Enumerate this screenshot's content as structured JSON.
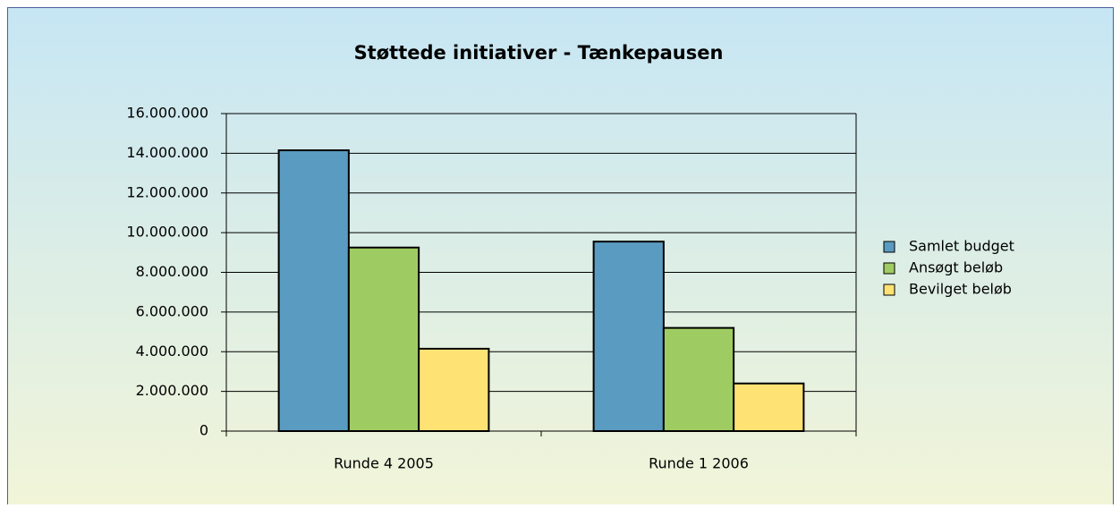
{
  "chart_data": {
    "type": "bar",
    "title": "Støttede initiativer - Tænkepausen",
    "categories": [
      "Runde 4 2005",
      "Runde 1 2006"
    ],
    "series": [
      {
        "name": "Samlet budget",
        "color": "#5a9bc1",
        "values": [
          14150000,
          9550000
        ]
      },
      {
        "name": "Ansøgt beløb",
        "color": "#9fcc62",
        "values": [
          9250000,
          5200000
        ]
      },
      {
        "name": "Bevilget beløb",
        "color": "#ffe274",
        "values": [
          4150000,
          2400000
        ]
      }
    ],
    "ylim": [
      0,
      16000000
    ],
    "yticks": [
      {
        "value": 0,
        "label": "0"
      },
      {
        "value": 2000000,
        "label": "2.000.000"
      },
      {
        "value": 4000000,
        "label": "4.000.000"
      },
      {
        "value": 6000000,
        "label": "6.000.000"
      },
      {
        "value": 8000000,
        "label": "8.000.000"
      },
      {
        "value": 10000000,
        "label": "10.000.000"
      },
      {
        "value": 12000000,
        "label": "12.000.000"
      },
      {
        "value": 14000000,
        "label": "14.000.000"
      },
      {
        "value": 16000000,
        "label": "16.000.000"
      }
    ],
    "grid": true,
    "legend": "right"
  }
}
